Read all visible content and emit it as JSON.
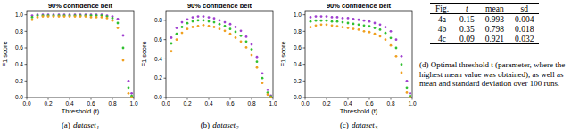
{
  "chart_data": [
    {
      "type": "scatter",
      "title": "90% confidence belt",
      "y_label": "F1 score",
      "x_label": "Threshold (t)",
      "caption": "(a)",
      "caption_name": "dataset",
      "caption_sub": "1",
      "marker": "dot",
      "grid": false,
      "x": [
        0.05,
        0.1,
        0.15,
        0.2,
        0.25,
        0.3,
        0.35,
        0.4,
        0.45,
        0.5,
        0.55,
        0.6,
        0.65,
        0.7,
        0.75,
        0.8,
        0.85,
        0.9,
        0.95,
        0.98
      ],
      "series": [
        {
          "color": "#a040d0",
          "values": [
            0.99,
            1.0,
            1.0,
            1.0,
            1.0,
            1.0,
            1.0,
            1.0,
            1.0,
            1.0,
            1.0,
            1.0,
            1.0,
            1.0,
            0.99,
            0.98,
            0.95,
            0.75,
            0.2,
            0.05
          ]
        },
        {
          "color": "#30c030",
          "values": [
            0.97,
            0.99,
            0.99,
            0.99,
            0.99,
            0.99,
            0.99,
            0.99,
            0.99,
            0.99,
            0.99,
            0.99,
            0.99,
            0.99,
            0.98,
            0.96,
            0.9,
            0.6,
            0.12,
            0.02
          ]
        },
        {
          "color": "#f0a020",
          "values": [
            0.94,
            0.97,
            0.98,
            0.98,
            0.98,
            0.98,
            0.98,
            0.98,
            0.98,
            0.98,
            0.98,
            0.97,
            0.97,
            0.97,
            0.96,
            0.93,
            0.84,
            0.45,
            0.05,
            0.0
          ]
        }
      ],
      "xlim": [
        0,
        1
      ],
      "ylim": [
        0,
        1.05
      ],
      "xticks": [
        {
          "value": 0,
          "label": "0.0"
        },
        {
          "value": 0.2,
          "label": "0.2"
        },
        {
          "value": 0.4,
          "label": "0.4"
        },
        {
          "value": 0.6,
          "label": "0.6"
        },
        {
          "value": 0.8,
          "label": "0.8"
        },
        {
          "value": 1,
          "label": "1.0"
        }
      ],
      "yticks": [
        {
          "value": 0,
          "label": "0.0"
        },
        {
          "value": 0.2,
          "label": "0.2"
        },
        {
          "value": 0.4,
          "label": "0.4"
        },
        {
          "value": 0.6,
          "label": "0.6"
        },
        {
          "value": 0.8,
          "label": "0.8"
        },
        {
          "value": 1,
          "label": "1.0"
        }
      ]
    },
    {
      "type": "scatter",
      "title": "90% confidence belt",
      "y_label": "F1 score",
      "caption": "(b)",
      "caption_name": "dataset",
      "caption_sub": "2",
      "marker": "dot",
      "grid": false,
      "x": [
        0.05,
        0.1,
        0.15,
        0.2,
        0.25,
        0.3,
        0.35,
        0.4,
        0.45,
        0.5,
        0.55,
        0.6,
        0.65,
        0.7,
        0.75,
        0.8,
        0.85,
        0.9,
        0.95,
        0.98
      ],
      "series": [
        {
          "color": "#a040d0",
          "values": [
            0.62,
            0.72,
            0.78,
            0.81,
            0.83,
            0.84,
            0.84,
            0.83,
            0.82,
            0.8,
            0.78,
            0.76,
            0.73,
            0.69,
            0.63,
            0.55,
            0.42,
            0.25,
            0.08,
            0.02
          ]
        },
        {
          "color": "#30c030",
          "values": [
            0.56,
            0.66,
            0.73,
            0.77,
            0.79,
            0.8,
            0.8,
            0.79,
            0.78,
            0.76,
            0.74,
            0.71,
            0.68,
            0.64,
            0.58,
            0.5,
            0.37,
            0.2,
            0.05,
            0.01
          ]
        },
        {
          "color": "#f0a020",
          "values": [
            0.48,
            0.6,
            0.67,
            0.71,
            0.73,
            0.74,
            0.75,
            0.74,
            0.73,
            0.71,
            0.69,
            0.66,
            0.62,
            0.58,
            0.52,
            0.44,
            0.31,
            0.15,
            0.03,
            0.0
          ]
        }
      ],
      "xlim": [
        0,
        1
      ],
      "ylim": [
        0,
        0.9
      ],
      "xticks": [
        {
          "value": 0,
          "label": "0.0"
        },
        {
          "value": 0.2,
          "label": "0.2"
        },
        {
          "value": 0.4,
          "label": "0.4"
        },
        {
          "value": 0.6,
          "label": "0.6"
        },
        {
          "value": 0.8,
          "label": "0.8"
        },
        {
          "value": 1,
          "label": "1.0"
        }
      ],
      "yticks": [
        {
          "value": 0,
          "label": "0.0"
        },
        {
          "value": 0.2,
          "label": "0.2"
        },
        {
          "value": 0.4,
          "label": "0.4"
        },
        {
          "value": 0.6,
          "label": "0.6"
        },
        {
          "value": 0.8,
          "label": "0.8"
        }
      ]
    },
    {
      "type": "scatter",
      "title": "90% confidence belt",
      "y_label": "F1 score",
      "x_label": "Threshold (t)",
      "caption": "(c)",
      "caption_name": "dataset",
      "caption_sub": "3",
      "marker": "dot",
      "grid": false,
      "x": [
        0.05,
        0.1,
        0.15,
        0.2,
        0.25,
        0.3,
        0.35,
        0.4,
        0.45,
        0.5,
        0.55,
        0.6,
        0.65,
        0.7,
        0.75,
        0.8,
        0.85,
        0.9,
        0.95,
        0.98
      ],
      "series": [
        {
          "color": "#a040d0",
          "values": [
            0.97,
            0.98,
            0.98,
            0.98,
            0.97,
            0.97,
            0.96,
            0.96,
            0.95,
            0.94,
            0.93,
            0.92,
            0.9,
            0.88,
            0.85,
            0.8,
            0.7,
            0.5,
            0.2,
            0.05
          ]
        },
        {
          "color": "#30c030",
          "values": [
            0.92,
            0.93,
            0.93,
            0.93,
            0.92,
            0.92,
            0.91,
            0.9,
            0.89,
            0.88,
            0.87,
            0.86,
            0.84,
            0.82,
            0.78,
            0.72,
            0.6,
            0.4,
            0.12,
            0.02
          ]
        },
        {
          "color": "#f0a020",
          "values": [
            0.85,
            0.87,
            0.88,
            0.88,
            0.87,
            0.86,
            0.85,
            0.84,
            0.83,
            0.82,
            0.8,
            0.79,
            0.77,
            0.74,
            0.7,
            0.63,
            0.5,
            0.3,
            0.06,
            0.0
          ]
        }
      ],
      "xlim": [
        0,
        1
      ],
      "ylim": [
        0,
        1.05
      ],
      "xticks": [
        {
          "value": 0,
          "label": "0.0"
        },
        {
          "value": 0.2,
          "label": "0.2"
        },
        {
          "value": 0.4,
          "label": "0.4"
        },
        {
          "value": 0.6,
          "label": "0.6"
        },
        {
          "value": 0.8,
          "label": "0.8"
        },
        {
          "value": 1,
          "label": "1.0"
        }
      ],
      "yticks": [
        {
          "value": 0,
          "label": "0.0"
        },
        {
          "value": 0.2,
          "label": "0.2"
        },
        {
          "value": 0.4,
          "label": "0.4"
        },
        {
          "value": 0.6,
          "label": "0.6"
        },
        {
          "value": 0.8,
          "label": "0.8"
        },
        {
          "value": 1,
          "label": "1.0"
        }
      ]
    }
  ],
  "table": {
    "header": [
      "Fig.",
      "t",
      "mean",
      "sd"
    ],
    "rows": [
      [
        "4a",
        "0.15",
        "0.993",
        "0.004"
      ],
      [
        "4b",
        "0.35",
        "0.798",
        "0.018"
      ],
      [
        "4c",
        "0.09",
        "0.921",
        "0.032"
      ]
    ],
    "caption": "(d) Optimal threshold t (parameter, where the highest mean value was obtained), as well as mean and standard deviation over 100 runs."
  }
}
